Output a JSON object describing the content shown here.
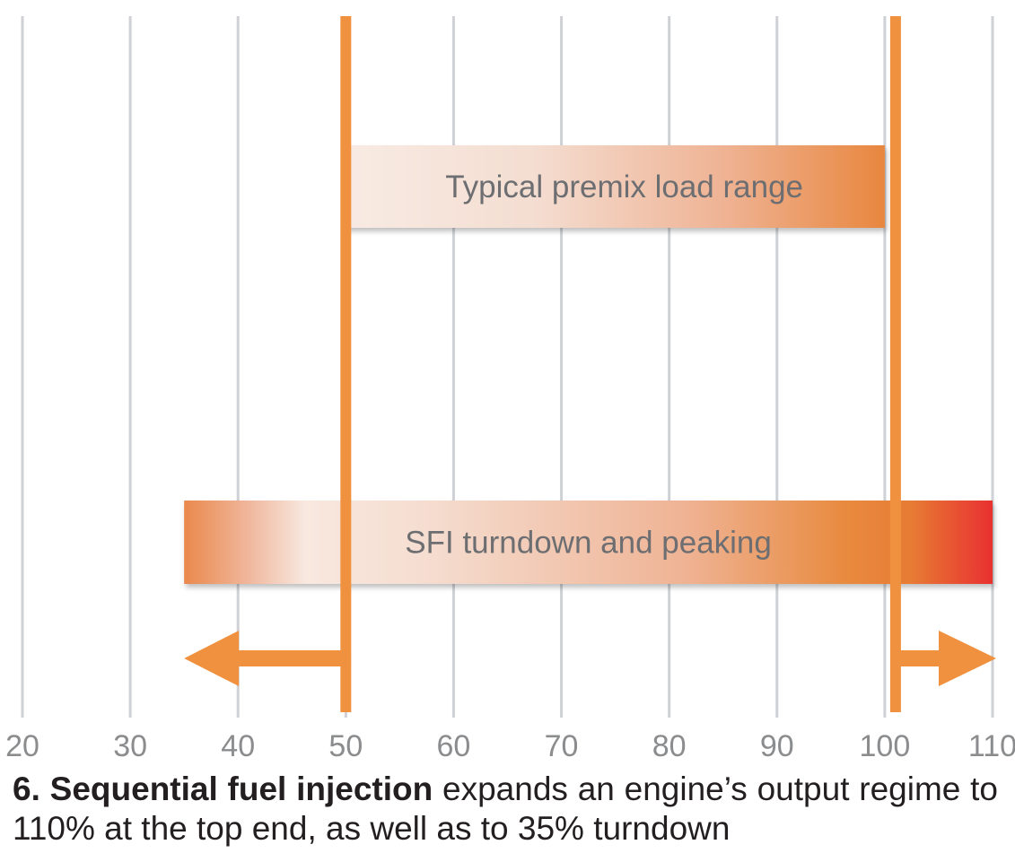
{
  "chart_data": {
    "type": "bar",
    "x_axis": {
      "range": [
        20,
        110
      ],
      "ticks": [
        20,
        30,
        40,
        50,
        60,
        70,
        80,
        90,
        100,
        110
      ],
      "grid": true
    },
    "bars": [
      {
        "label": "Typical premix load range",
        "start": 50,
        "end": 100
      },
      {
        "label": "SFI turndown and peaking",
        "start": 35,
        "end": 110
      }
    ],
    "markers": [
      50,
      101
    ],
    "arrows": [
      {
        "from": 50,
        "to": 35,
        "direction": "left"
      },
      {
        "from": 101,
        "to": 110,
        "direction": "right"
      }
    ],
    "colors": {
      "accent": "#f0913f",
      "bar_light": "#f7e6dc",
      "bar_peak": "#e8332f",
      "grid": "#cfd1d6",
      "text": "#6d6e71"
    }
  },
  "caption": {
    "number": "6.",
    "bold": "Sequential fuel injection",
    "text": "expands an engine’s output regime to 110% at the top end, as well as to 35% turndown"
  }
}
